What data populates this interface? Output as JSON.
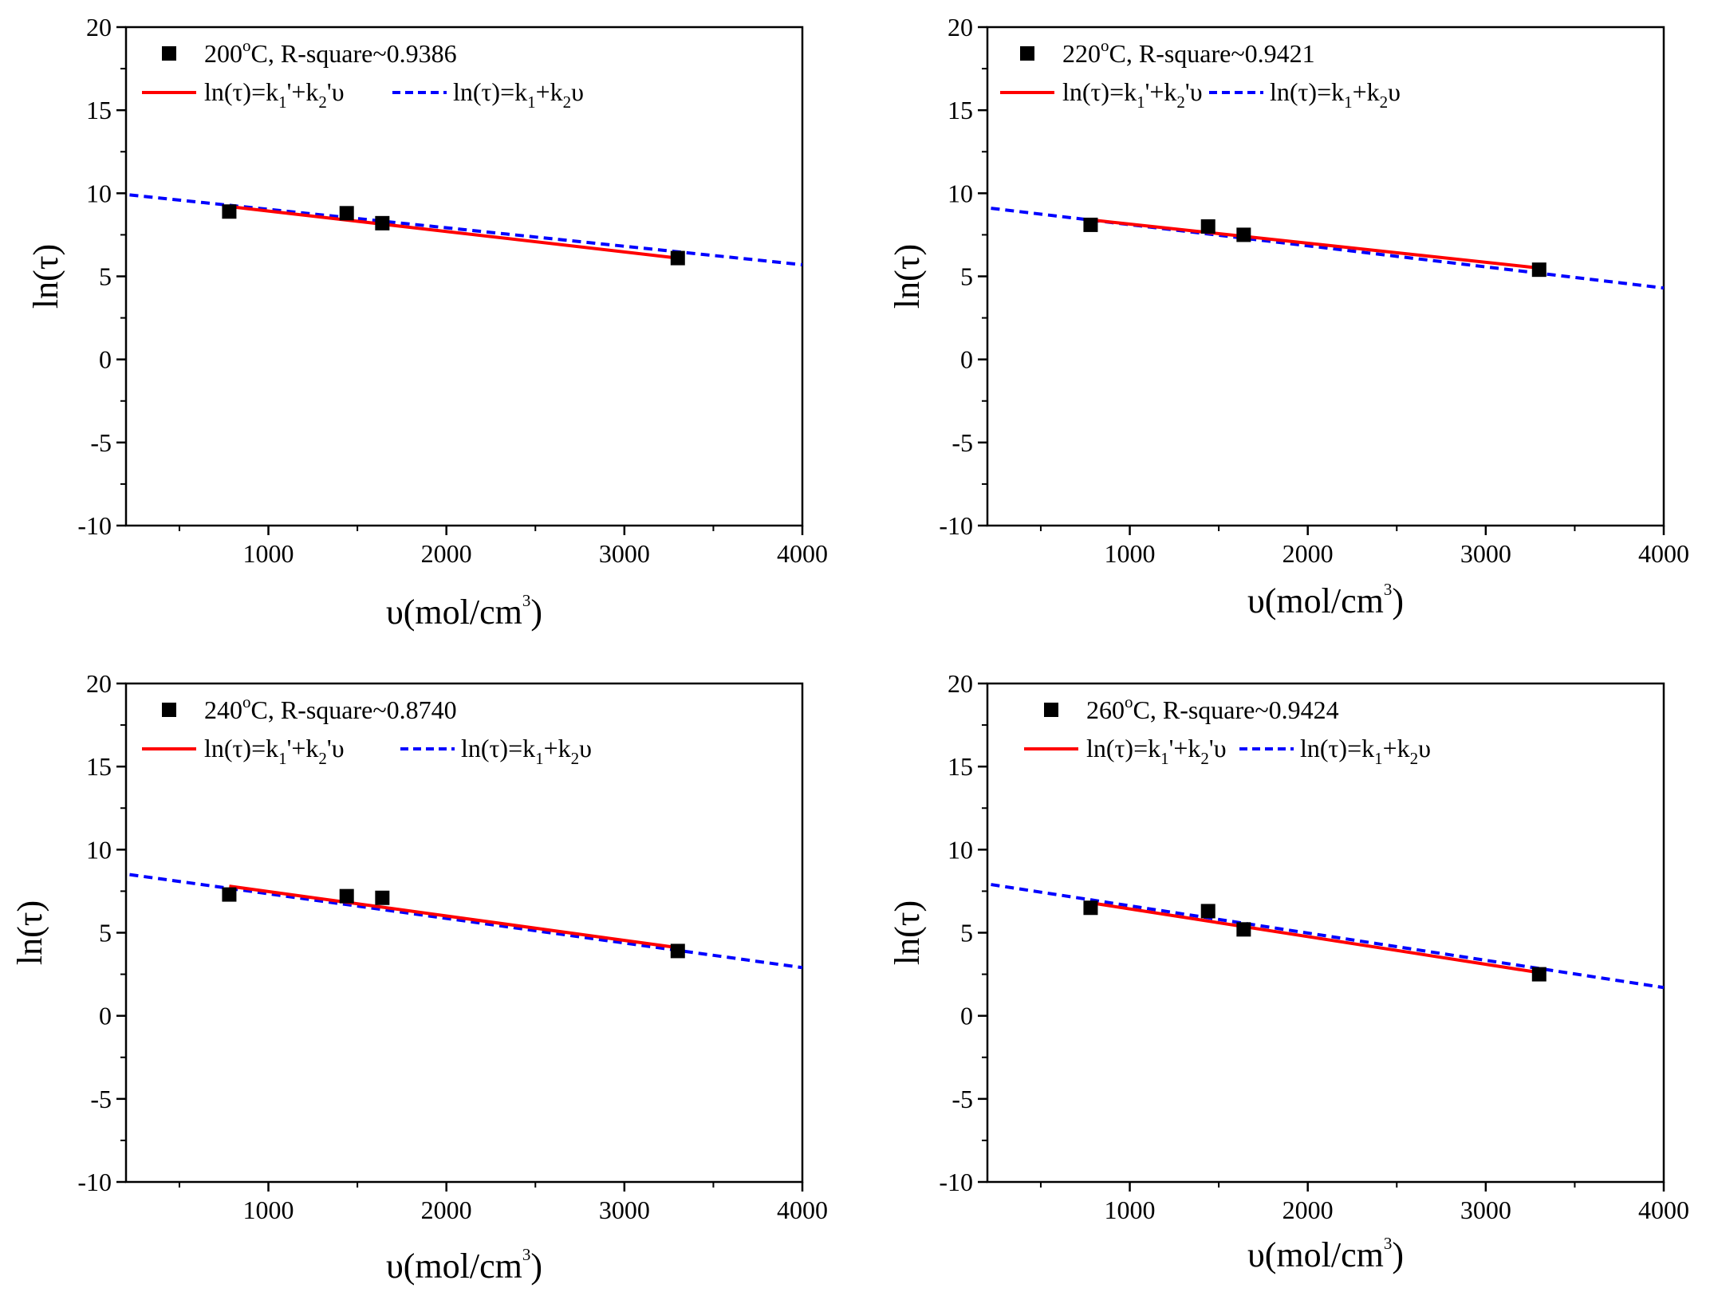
{
  "figure": {
    "layout": "2x2 grid",
    "x_axis_title": "υ(mol/cm",
    "x_axis_title_sup": "3",
    "x_axis_title_end": ")",
    "y_axis_title": "ln(τ)",
    "legend_fit1": {
      "pre": "ln(τ)=k",
      "s1": "1",
      "mid": "'+k",
      "s2": "2",
      "post": "'υ"
    },
    "legend_fit2": {
      "pre": "ln(τ)=k",
      "s1": "1",
      "mid": "+k",
      "s2": "2",
      "post": "υ"
    },
    "colors": {
      "points": "#000000",
      "fit1": "#ff0000",
      "fit2": "#0000ff",
      "axes": "#000000"
    }
  },
  "chart_data": [
    {
      "type": "scatter",
      "temperature": "200",
      "degree": "o",
      "label_rest": "C, R-square~0.9386",
      "r_square": 0.9386,
      "xlim": [
        200,
        4000
      ],
      "ylim": [
        -10,
        20
      ],
      "x_ticks": [
        1000,
        2000,
        3000,
        4000
      ],
      "y_ticks": [
        -10,
        -5,
        0,
        5,
        10,
        15,
        20
      ],
      "points": {
        "x": [
          780,
          1440,
          1640,
          3300
        ],
        "y": [
          8.9,
          8.8,
          8.2,
          6.1
        ]
      },
      "fit1": {
        "name": "ln(τ)=k1'+k2'υ",
        "x": [
          780,
          3300
        ],
        "y": [
          9.2,
          6.1
        ]
      },
      "fit2": {
        "name": "ln(τ)=k1+k2υ",
        "x": [
          220,
          4000
        ],
        "y": [
          9.9,
          5.7
        ]
      }
    },
    {
      "type": "scatter",
      "temperature": "220",
      "degree": "o",
      "label_rest": "C, R-square~0.9421",
      "r_square": 0.9421,
      "xlim": [
        200,
        4000
      ],
      "ylim": [
        -10,
        20
      ],
      "x_ticks": [
        1000,
        2000,
        3000,
        4000
      ],
      "y_ticks": [
        -10,
        -5,
        0,
        5,
        10,
        15,
        20
      ],
      "points": {
        "x": [
          780,
          1440,
          1640,
          3300
        ],
        "y": [
          8.1,
          8.0,
          7.5,
          5.4
        ]
      },
      "fit1": {
        "name": "ln(τ)=k1'+k2'υ",
        "x": [
          780,
          3300
        ],
        "y": [
          8.4,
          5.5
        ]
      },
      "fit2": {
        "name": "ln(τ)=k1+k2υ",
        "x": [
          220,
          4000
        ],
        "y": [
          9.1,
          4.3
        ]
      }
    },
    {
      "type": "scatter",
      "temperature": "240",
      "degree": "o",
      "label_rest": "C, R-square~0.8740",
      "r_square": 0.874,
      "xlim": [
        200,
        4000
      ],
      "ylim": [
        -10,
        20
      ],
      "x_ticks": [
        1000,
        2000,
        3000,
        4000
      ],
      "y_ticks": [
        -10,
        -5,
        0,
        5,
        10,
        15,
        20
      ],
      "points": {
        "x": [
          780,
          1440,
          1640,
          3300
        ],
        "y": [
          7.3,
          7.2,
          7.1,
          3.9
        ]
      },
      "fit1": {
        "name": "ln(τ)=k1'+k2'υ",
        "x": [
          780,
          3300
        ],
        "y": [
          7.8,
          4.1
        ]
      },
      "fit2": {
        "name": "ln(τ)=k1+k2υ",
        "x": [
          220,
          4000
        ],
        "y": [
          8.5,
          2.9
        ]
      }
    },
    {
      "type": "scatter",
      "temperature": "260",
      "degree": "o",
      "label_rest": "C, R-square~0.9424",
      "r_square": 0.9424,
      "xlim": [
        200,
        4000
      ],
      "ylim": [
        -10,
        20
      ],
      "x_ticks": [
        1000,
        2000,
        3000,
        4000
      ],
      "y_ticks": [
        -10,
        -5,
        0,
        5,
        10,
        15,
        20
      ],
      "points": {
        "x": [
          780,
          1440,
          1640,
          3300
        ],
        "y": [
          6.5,
          6.3,
          5.2,
          2.5
        ]
      },
      "fit1": {
        "name": "ln(τ)=k1'+k2'υ",
        "x": [
          780,
          3300
        ],
        "y": [
          6.8,
          2.6
        ]
      },
      "fit2": {
        "name": "ln(τ)=k1+k2υ",
        "x": [
          220,
          4000
        ],
        "y": [
          7.9,
          1.7
        ]
      }
    }
  ]
}
